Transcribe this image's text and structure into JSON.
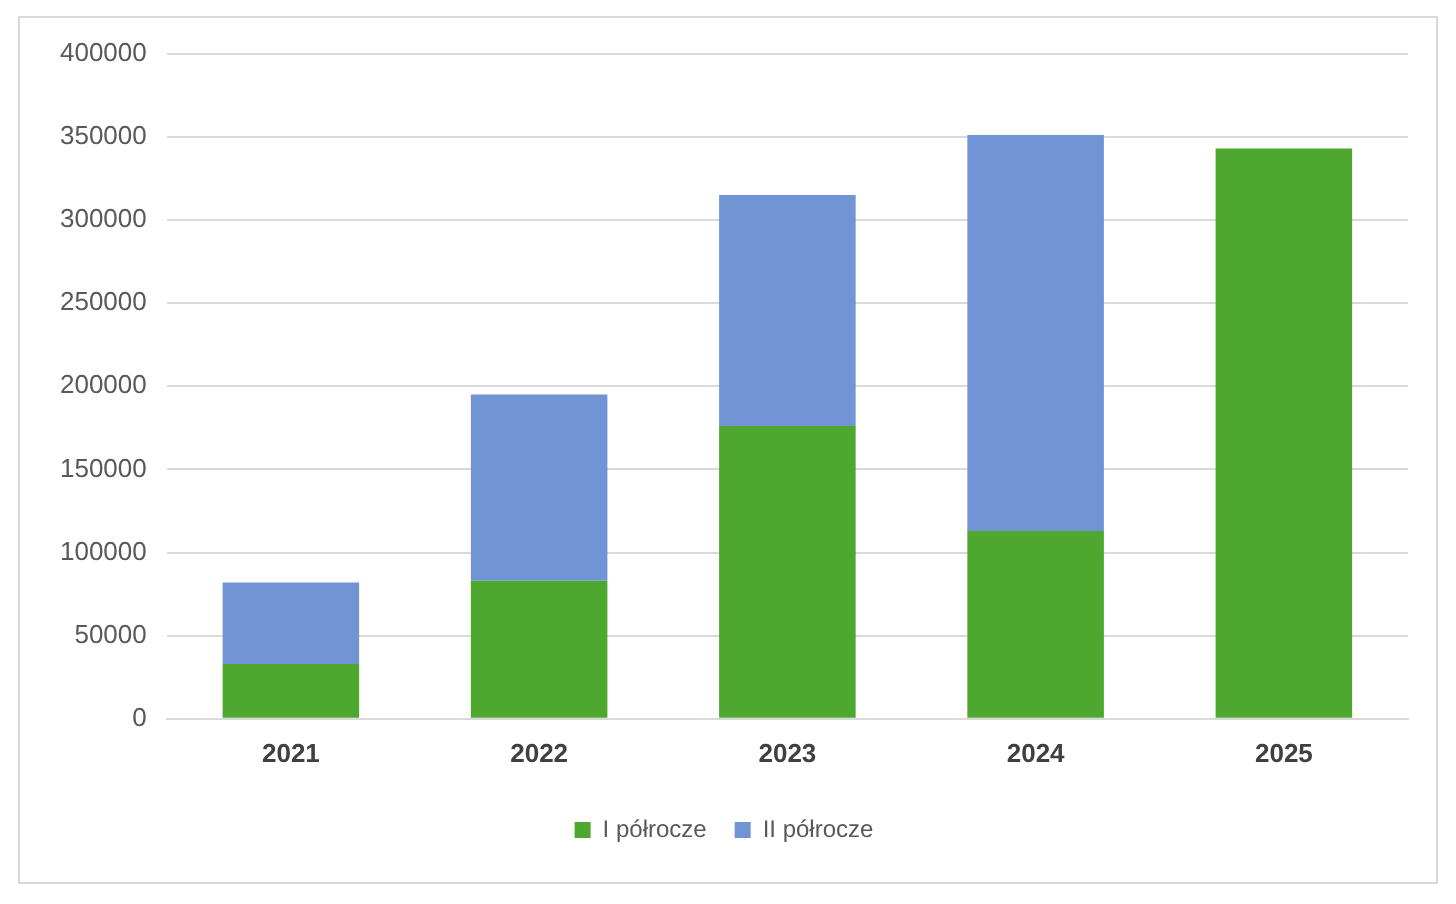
{
  "chart_data": {
    "type": "bar",
    "stacked": true,
    "categories": [
      "2021",
      "2022",
      "2023",
      "2024",
      "2025"
    ],
    "series": [
      {
        "name": "I półrocze",
        "color": "#4ea72e",
        "values": [
          33000,
          83000,
          176000,
          113000,
          343000
        ]
      },
      {
        "name": "II półrocze",
        "color": "#7094d4",
        "values": [
          49000,
          112000,
          139000,
          238000,
          null
        ]
      }
    ],
    "ylim": [
      0,
      400000
    ],
    "yticks": [
      0,
      50000,
      100000,
      150000,
      200000,
      250000,
      300000,
      350000,
      400000
    ],
    "grid": "y",
    "legend": "bottom"
  }
}
